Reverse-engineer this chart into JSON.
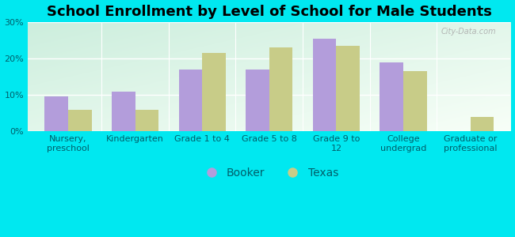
{
  "title": "School Enrollment by Level of School for Male Students",
  "categories": [
    "Nursery,\npreschool",
    "Kindergarten",
    "Grade 1 to 4",
    "Grade 5 to 8",
    "Grade 9 to\n12",
    "College\nundergrad",
    "Graduate or\nprofessional"
  ],
  "booker_values": [
    9.5,
    11.0,
    17.0,
    17.0,
    25.5,
    19.0,
    0.0
  ],
  "texas_values": [
    6.0,
    6.0,
    21.5,
    23.0,
    23.5,
    16.5,
    4.0
  ],
  "booker_color": "#b39ddb",
  "texas_color": "#c8cc88",
  "background_color": "#00e8f0",
  "grad_color_top_left": "#d4edda",
  "grad_color_bottom_right": "#f5fff5",
  "ylim": [
    0,
    30
  ],
  "yticks": [
    0,
    10,
    20,
    30
  ],
  "ytick_labels": [
    "0%",
    "10%",
    "20%",
    "30%"
  ],
  "bar_width": 0.35,
  "legend_labels": [
    "Booker",
    "Texas"
  ],
  "title_fontsize": 13,
  "tick_fontsize": 8,
  "legend_fontsize": 10,
  "tick_color": "#005f6b",
  "watermark_text": "City-Data.com"
}
